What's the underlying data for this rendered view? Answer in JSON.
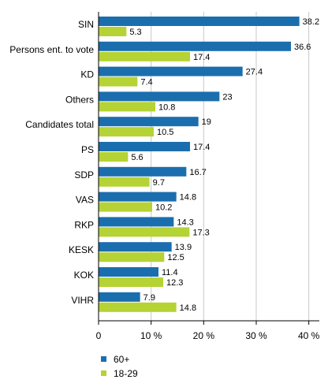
{
  "chart_data": {
    "type": "bar",
    "orientation": "horizontal",
    "title": "",
    "xlabel": "",
    "ylabel": "",
    "categories": [
      "SIN",
      "Persons ent. to vote",
      "KD",
      "Others",
      "Candidates total",
      "PS",
      "SDP",
      "VAS",
      "RKP",
      "KESK",
      "KOK",
      "VIHR"
    ],
    "series": [
      {
        "name": "60+",
        "color": "#1b6eae",
        "values": [
          38.2,
          36.6,
          27.4,
          23,
          19,
          17.4,
          16.7,
          14.8,
          14.3,
          13.9,
          11.4,
          7.9
        ]
      },
      {
        "name": "18-29",
        "color": "#b5d334",
        "values": [
          5.3,
          17.4,
          7.4,
          10.8,
          10.5,
          5.6,
          9.7,
          10.2,
          17.3,
          12.5,
          12.3,
          14.8
        ]
      }
    ],
    "xlim": [
      0,
      42
    ],
    "xticks": [
      0,
      10,
      20,
      30,
      40
    ],
    "xtick_labels": [
      "0",
      "10 %",
      "20 %",
      "30 %",
      "40 %"
    ],
    "grid": "vertical",
    "legend_position": "bottom-left"
  }
}
